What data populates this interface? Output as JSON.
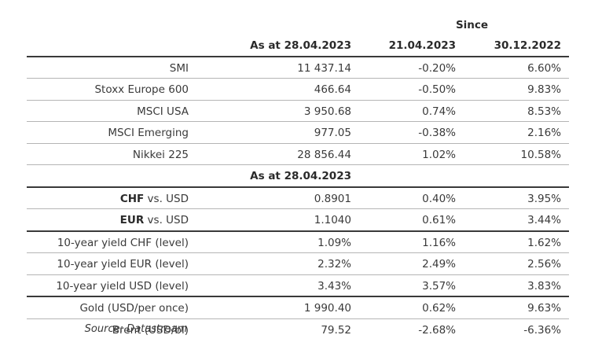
{
  "header": {
    "since_label": "Since",
    "col_asat": "As at 28.04.2023",
    "col_since1": "21.04.2023",
    "col_since2": "30.12.2022"
  },
  "equities": [
    {
      "name": "SMI",
      "value": "11 437.14",
      "chg1": "-0.20%",
      "chg2": "6.60%"
    },
    {
      "name": "Stoxx Europe 600",
      "value": "466.64",
      "chg1": "-0.50%",
      "chg2": "9.83%"
    },
    {
      "name": "MSCI USA",
      "value": "3 950.68",
      "chg1": "0.74%",
      "chg2": "8.53%"
    },
    {
      "name": "MSCI Emerging",
      "value": "977.05",
      "chg1": "-0.38%",
      "chg2": "2.16%"
    },
    {
      "name": "Nikkei 225",
      "value": "28 856.44",
      "chg1": "1.02%",
      "chg2": "10.58%"
    }
  ],
  "sub_header": {
    "col_asat": "As at 28.04.2023"
  },
  "fx": [
    {
      "ccy": "CHF",
      "suffix": " vs. USD",
      "value": "0.8901",
      "chg1": "0.40%",
      "chg2": "3.95%"
    },
    {
      "ccy": "EUR",
      "suffix": " vs. USD",
      "value": "1.1040",
      "chg1": "0.61%",
      "chg2": "3.44%"
    }
  ],
  "yields": [
    {
      "name": "10-year yield CHF (level)",
      "value": "1.09%",
      "chg1": "1.16%",
      "chg2": "1.62%"
    },
    {
      "name": "10-year yield EUR (level)",
      "value": "2.32%",
      "chg1": "2.49%",
      "chg2": "2.56%"
    },
    {
      "name": "10-year yield USD (level)",
      "value": "3.43%",
      "chg1": "3.57%",
      "chg2": "3.83%"
    }
  ],
  "commodities": [
    {
      "name": "Gold (USD/per once)",
      "value": "1 990.40",
      "chg1": "0.62%",
      "chg2": "9.63%"
    },
    {
      "name": "Brent (USD/bl)",
      "value": "79.52",
      "chg1": "-2.68%",
      "chg2": "-6.36%"
    }
  ],
  "source": "Source: Datastream"
}
